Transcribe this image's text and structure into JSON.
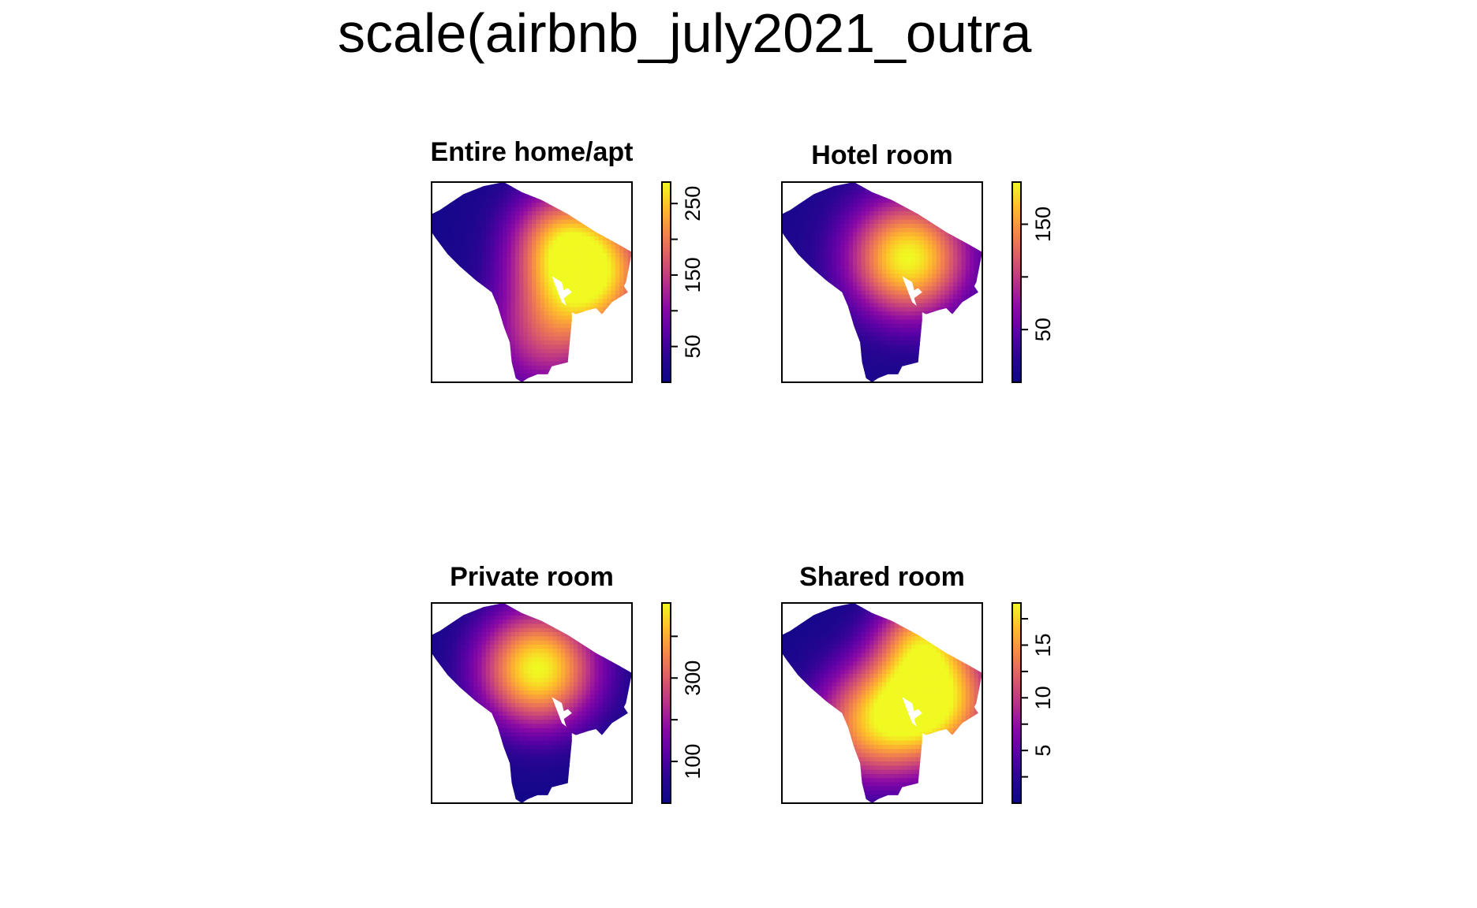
{
  "main_title": "scale(airbnb_july2021_outra",
  "colors": {
    "ramp": [
      "#0d0887",
      "#2a0593",
      "#5c01a6",
      "#8b0aa5",
      "#b83289",
      "#db5c68",
      "#f48849",
      "#febd2a",
      "#f0f921"
    ],
    "frame": "#000000",
    "background": "#ffffff"
  },
  "chart_data": [
    {
      "type": "heatmap",
      "title": "Entire home/apt",
      "legend_ticks": [
        50,
        150,
        250
      ],
      "value_range": [
        0,
        280
      ],
      "hotspots": [
        {
          "cx": 0.78,
          "cy": 0.45,
          "r": 0.32,
          "value": 280
        },
        {
          "cx": 0.55,
          "cy": 0.8,
          "r": 0.3,
          "value": 120
        },
        {
          "cx": 0.62,
          "cy": 0.25,
          "r": 0.25,
          "value": 110
        }
      ],
      "base_value": 10,
      "legend_position": "right"
    },
    {
      "type": "heatmap",
      "title": "Hotel room",
      "legend_ticks": [
        50,
        150
      ],
      "value_range": [
        0,
        190
      ],
      "hotspots": [
        {
          "cx": 0.63,
          "cy": 0.38,
          "r": 0.3,
          "value": 190
        }
      ],
      "base_value": 10,
      "legend_position": "right"
    },
    {
      "type": "heatmap",
      "title": "Private room",
      "legend_ticks": [
        100,
        300
      ],
      "value_range": [
        0,
        480
      ],
      "hotspots": [
        {
          "cx": 0.53,
          "cy": 0.33,
          "r": 0.3,
          "value": 480
        }
      ],
      "base_value": 10,
      "legend_position": "right"
    },
    {
      "type": "heatmap",
      "title": "Shared room",
      "legend_ticks": [
        5,
        10,
        15
      ],
      "value_range": [
        0,
        19
      ],
      "hotspots": [
        {
          "cx": 0.75,
          "cy": 0.48,
          "r": 0.32,
          "value": 19
        },
        {
          "cx": 0.42,
          "cy": 0.62,
          "r": 0.3,
          "value": 12
        },
        {
          "cx": 0.7,
          "cy": 0.15,
          "r": 0.22,
          "value": 10
        }
      ],
      "base_value": 0.5,
      "legend_position": "right"
    }
  ]
}
